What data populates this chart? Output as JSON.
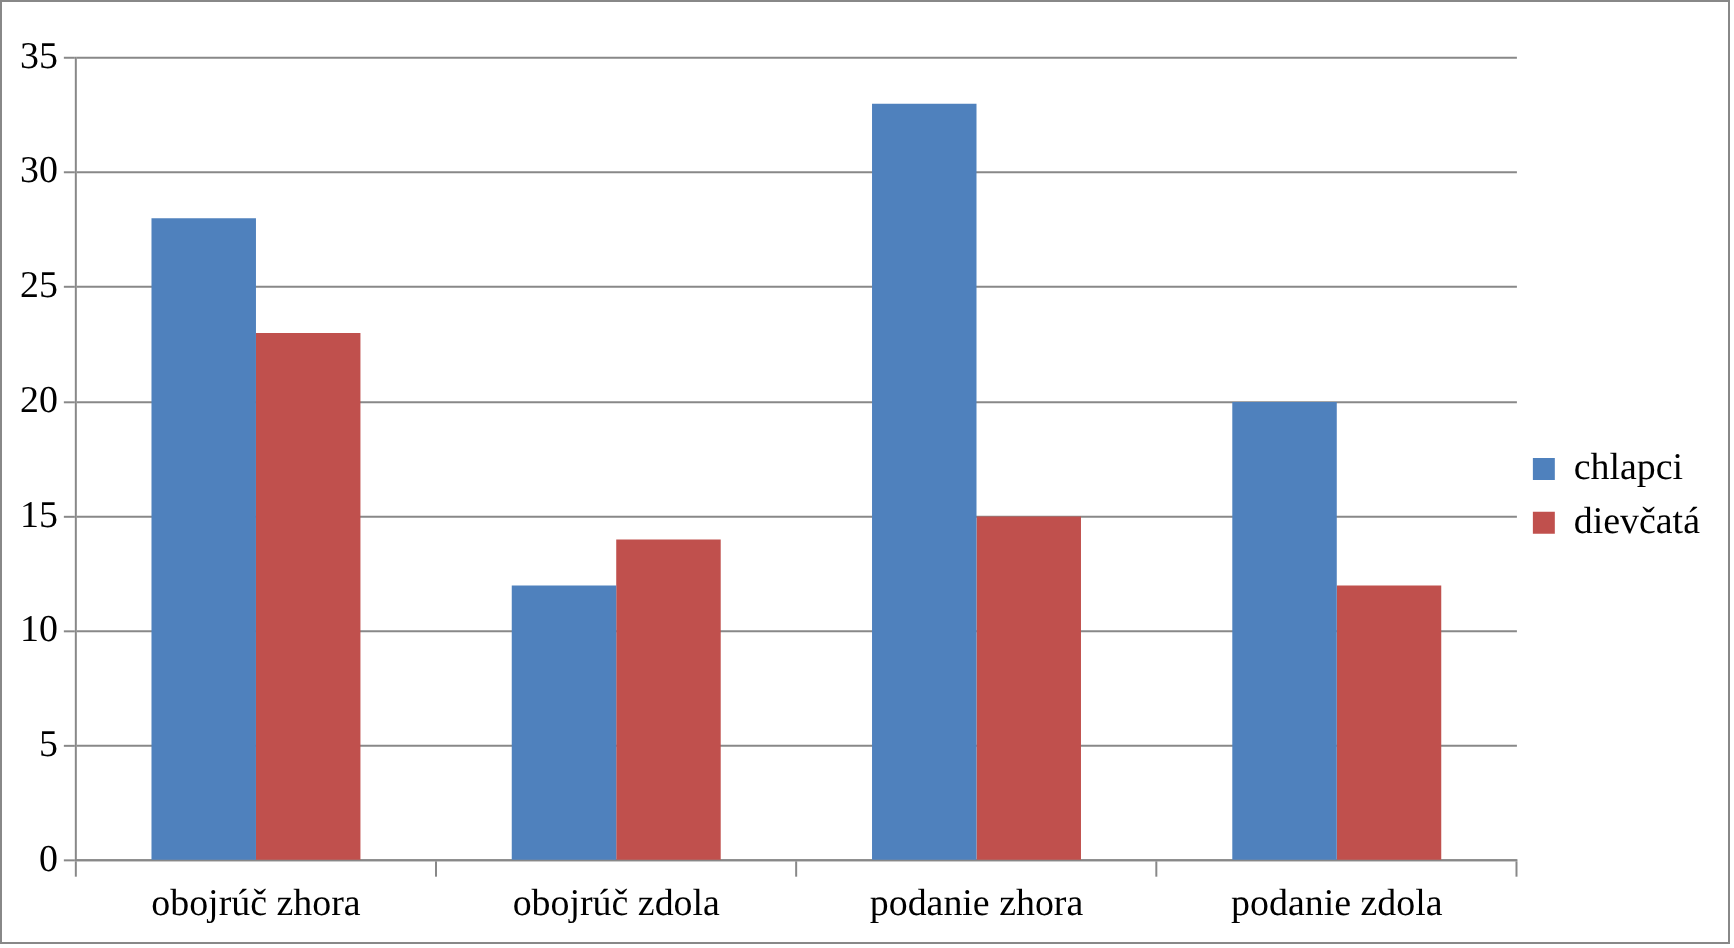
{
  "chart_data": {
    "type": "bar",
    "categories": [
      "obojrúč zhora",
      "obojrúč zdola",
      "podanie zhora",
      "podanie zdola"
    ],
    "series": [
      {
        "name": "chlapci",
        "color": "#4f81bd",
        "values": [
          28,
          12,
          33,
          20
        ]
      },
      {
        "name": "dievčatá",
        "color": "#c0504d",
        "values": [
          23,
          14,
          15,
          12
        ]
      }
    ],
    "ylim": [
      0,
      35
    ],
    "yticks": [
      0,
      5,
      10,
      15,
      20,
      25,
      30,
      35
    ],
    "grid": "y",
    "legend": "right"
  }
}
